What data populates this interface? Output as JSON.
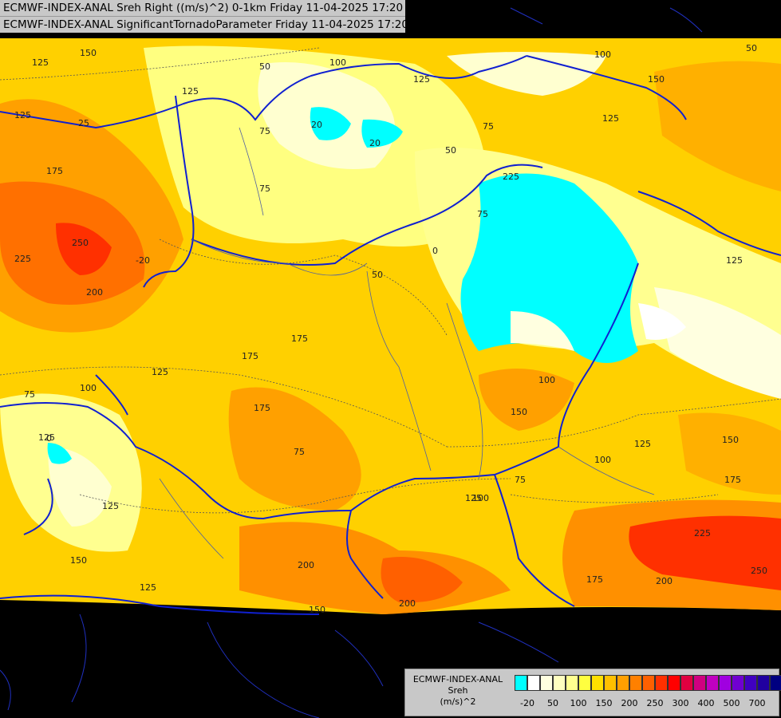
{
  "header": {
    "line1": "ECMWF-INDEX-ANAL Sreh Right ((m/s)^2) 0-1km Friday 11-04-2025 17:20",
    "line2": "ECMWF-INDEX-ANAL SignificantTornadoParameter Friday 11-04-2025 17:20"
  },
  "legend": {
    "title_lines": [
      "ECMWF-INDEX-ANAL",
      "Sreh",
      "(m/s)^2"
    ],
    "colors": [
      "#00ffff",
      "#ffffff",
      "#ffffe0",
      "#ffffc0",
      "#ffff90",
      "#ffff40",
      "#ffe000",
      "#ffc000",
      "#ffa000",
      "#ff8000",
      "#ff6000",
      "#ff3000",
      "#ff0000",
      "#e00040",
      "#d00080",
      "#c000c0",
      "#a000e0",
      "#7000d0",
      "#4000c0",
      "#2000a0",
      "#000080"
    ],
    "ticks": [
      {
        "label": "-20",
        "index": 1
      },
      {
        "label": "50",
        "index": 3
      },
      {
        "label": "100",
        "index": 5
      },
      {
        "label": "150",
        "index": 7
      },
      {
        "label": "200",
        "index": 9
      },
      {
        "label": "250",
        "index": 11
      },
      {
        "label": "300",
        "index": 13
      },
      {
        "label": "400",
        "index": 15
      },
      {
        "label": "500",
        "index": 17
      },
      {
        "label": "700",
        "index": 19
      }
    ]
  },
  "contour_labels": [
    "150",
    "125",
    "50",
    "100",
    "125",
    "100",
    "150",
    "50",
    "125",
    "25",
    "125",
    "75",
    "20",
    "20",
    "75",
    "125",
    "175",
    "50",
    "75",
    "250",
    "225",
    "200",
    "225",
    "0",
    "50",
    "125",
    "75",
    "-20",
    "175",
    "125",
    "100",
    "125",
    "75",
    "100",
    "175",
    "150",
    "100",
    "125",
    "150",
    "0",
    "75",
    "175",
    "75",
    "125",
    "100",
    "175",
    "200",
    "200",
    "150",
    "125",
    "225",
    "175",
    "200",
    "250",
    "150",
    "125"
  ]
}
